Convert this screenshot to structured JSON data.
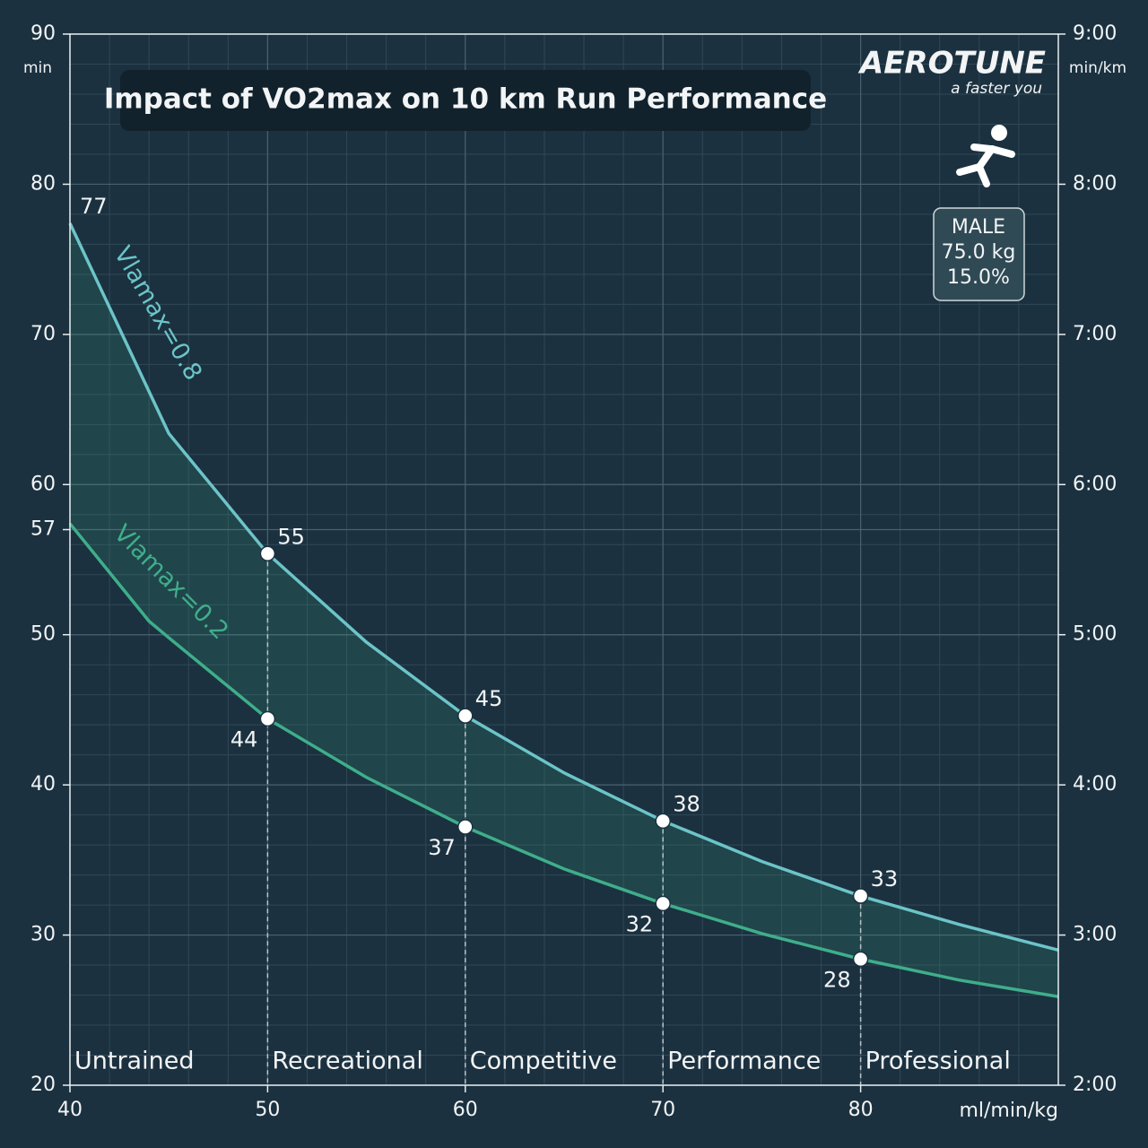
{
  "chart_data": {
    "type": "line",
    "title": "Impact of VO2max on 10 km Run Performance",
    "brand": "AEROTUNE",
    "tagline": "a faster you",
    "profile": [
      "MALE",
      "75.0 kg",
      "15.0%"
    ],
    "x_label": "ml/min/kg",
    "y_label": "min",
    "y2_label": "min/km",
    "x": [
      40,
      44,
      45,
      50,
      55,
      60,
      65,
      70,
      75,
      80,
      85,
      90
    ],
    "series": [
      {
        "name": "Vlamax=0.8",
        "color": "#6cc4c8",
        "values": [
          77.4,
          66.2,
          63.4,
          55.4,
          49.5,
          44.6,
          40.8,
          37.6,
          34.9,
          32.6,
          30.7,
          29.0
        ],
        "value_labels": [
          "77",
          null,
          null,
          "55",
          null,
          "45",
          null,
          "38",
          null,
          "33",
          null,
          null
        ]
      },
      {
        "name": "Vlamax=0.2",
        "color": "#3fae8a",
        "values": [
          57.4,
          50.9,
          49.8,
          44.4,
          40.5,
          37.2,
          34.4,
          32.1,
          30.1,
          28.4,
          27.0,
          25.9
        ],
        "value_labels": [
          null,
          null,
          null,
          "44",
          null,
          "37",
          null,
          "32",
          null,
          "28",
          null,
          null
        ]
      }
    ],
    "marker_x": [
      50,
      60,
      70,
      80
    ],
    "zones": [
      "Untrained",
      "Recreational",
      "Competitive",
      "Performance",
      "Professional"
    ],
    "xlim": [
      40,
      90
    ],
    "xticks": [
      40,
      50,
      60,
      70,
      80
    ],
    "ylim": [
      20,
      90
    ],
    "yticks": [
      20,
      30,
      40,
      50,
      57,
      60,
      70,
      80,
      90
    ],
    "y2lim": [
      2,
      9
    ],
    "y2ticks": [
      {
        "value": 2,
        "label": "2:00"
      },
      {
        "value": 3,
        "label": "3:00"
      },
      {
        "value": 4,
        "label": "4:00"
      },
      {
        "value": 5,
        "label": "5:00"
      },
      {
        "value": 6,
        "label": "6:00"
      },
      {
        "value": 7,
        "label": "7:00"
      },
      {
        "value": 8,
        "label": "8:00"
      },
      {
        "value": 9,
        "label": "9:00"
      }
    ],
    "grid": true,
    "band_fill": "#3fae8a"
  }
}
